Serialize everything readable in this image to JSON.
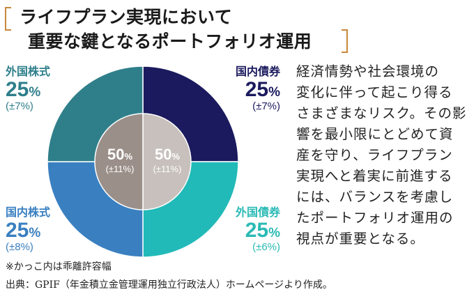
{
  "title": {
    "line1": "ライフプラン実現において",
    "line2": "重要な鍵となるポートフォリオ運用"
  },
  "chart_data": {
    "type": "pie",
    "outer": [
      {
        "name": "国内債券",
        "value": 25,
        "tolerance": "(±7%)",
        "color": "#1b1a5e"
      },
      {
        "name": "外国債券",
        "value": 25,
        "tolerance": "(±6%)",
        "color": "#22bab8"
      },
      {
        "name": "国内株式",
        "value": 25,
        "tolerance": "(±8%)",
        "color": "#3a80c1"
      },
      {
        "name": "外国株式",
        "value": 25,
        "tolerance": "(±7%)",
        "color": "#2f7f8a"
      }
    ],
    "inner": [
      {
        "value": 50,
        "tolerance": "(±11%)",
        "color": "#c7c0bc"
      },
      {
        "value": 50,
        "tolerance": "(±11%)",
        "color": "#9b8f89"
      }
    ],
    "unit": "%"
  },
  "body": [
    "経済情勢や社会環境の",
    "変化に伴って起こり得る",
    "さまざまなリスク。その影",
    "響を最小限にとどめて資",
    "産を守り、ライフプラン",
    "実現へと着実に前進する",
    "には、バランスを考慮し",
    "たポートフォリオ運用の",
    "視点が重要となる。"
  ],
  "note": "※かっこ内は乖離許容幅",
  "source": "出典：GPIF（年金積立金管理運用独立行政法人）ホームページより作成。",
  "colors": {
    "bracket": "#c8873a"
  }
}
